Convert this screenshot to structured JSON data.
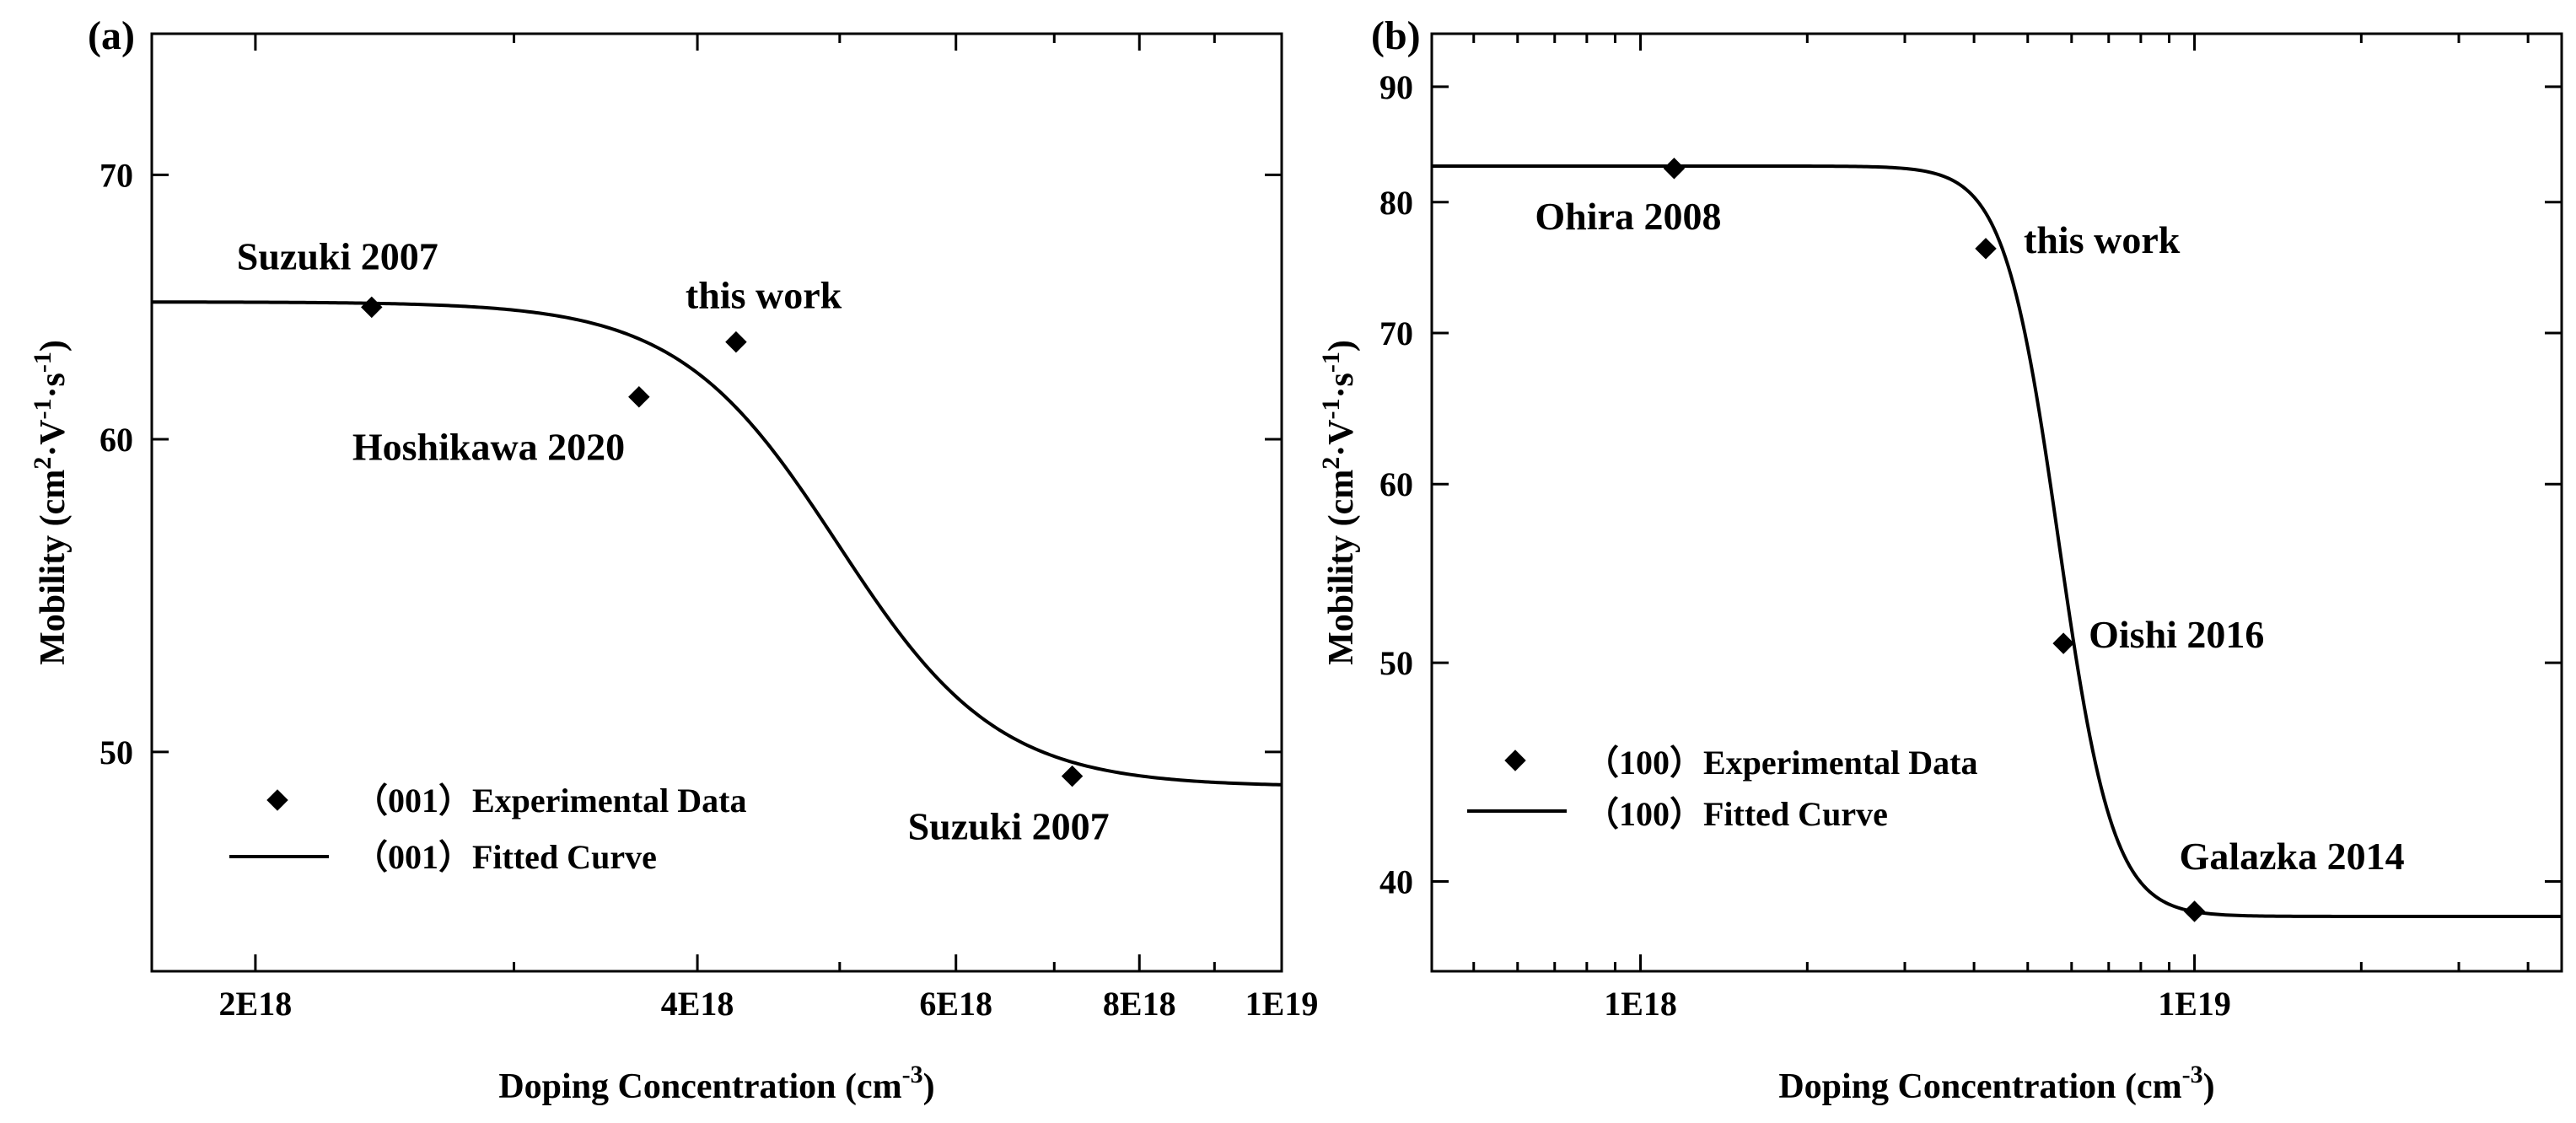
{
  "chart_data": [
    {
      "panel": "(a)",
      "type": "scatter+line",
      "x_scale": "log",
      "y_scale": "log",
      "xlabel": "Doping Concentration (cm",
      "xlabel_sup": "-3",
      "xlabel_end": ")",
      "ylabel_parts": [
        "Mobility (cm",
        "2",
        "·V",
        "-1",
        "·s",
        "-1",
        ")"
      ],
      "xlim": [
        1.7e+18,
        1e+19
      ],
      "ylim": [
        44.0,
        76.0
      ],
      "x_ticks": [
        {
          "value": 2e+18,
          "label": "2E18"
        },
        {
          "value": 4e+18,
          "label": "4E18"
        },
        {
          "value": 6e+18,
          "label": "6E18"
        },
        {
          "value": 8e+18,
          "label": "8E18"
        },
        {
          "value": 1e+19,
          "label": "1E19"
        }
      ],
      "x_minor_ticks": [
        3e+18,
        5e+18,
        7e+18,
        9e+18
      ],
      "y_ticks": [
        {
          "value": 50,
          "label": "50"
        },
        {
          "value": 60,
          "label": "60"
        },
        {
          "value": 70,
          "label": "70"
        }
      ],
      "series": [
        {
          "name": "（001）Experimental Data",
          "kind": "scatter",
          "points": [
            {
              "x": 2.4e+18,
              "y": 64.8,
              "label": "Suzuki  2007"
            },
            {
              "x": 3.65e+18,
              "y": 61.5,
              "label": "Hoshikawa  2020"
            },
            {
              "x": 4.25e+18,
              "y": 63.5,
              "label": "this work"
            },
            {
              "x": 7.2e+18,
              "y": 49.3,
              "label": "Suzuki  2007"
            }
          ]
        },
        {
          "name": "（001）Fitted Curve",
          "kind": "line",
          "model": {
            "top": 65.0,
            "bottom": 49.0,
            "x0": 4.9e+18,
            "p": 8.0
          }
        }
      ],
      "legend_position": "bottom-left"
    },
    {
      "panel": "(b)",
      "type": "scatter+line",
      "x_scale": "log",
      "y_scale": "log",
      "xlabel": "Doping Concentration (cm",
      "xlabel_sup": "-3",
      "xlabel_end": ")",
      "ylabel_parts": [
        "Mobility (cm",
        "2",
        "·V",
        "-1",
        "·s",
        "-1",
        ")"
      ],
      "xlim": [
        4.2e+17,
        4.6e+19
      ],
      "ylim": [
        36.5,
        95.0
      ],
      "x_ticks": [
        {
          "value": 1e+18,
          "label": "1E18"
        },
        {
          "value": 1e+19,
          "label": "1E19"
        }
      ],
      "x_minor_ticks": [
        5e+17,
        6e+17,
        7e+17,
        8e+17,
        9e+17,
        2e+18,
        3e+18,
        4e+18,
        5e+18,
        6e+18,
        7e+18,
        8e+18,
        9e+18,
        2e+19,
        3e+19,
        4e+19
      ],
      "y_ticks": [
        {
          "value": 40,
          "label": "40"
        },
        {
          "value": 50,
          "label": "50"
        },
        {
          "value": 60,
          "label": "60"
        },
        {
          "value": 70,
          "label": "70"
        },
        {
          "value": 80,
          "label": "80"
        },
        {
          "value": 90,
          "label": "90"
        }
      ],
      "series": [
        {
          "name": "（100）Experimental Data",
          "kind": "scatter",
          "points": [
            {
              "x": 1.15e+18,
              "y": 82.8,
              "label": "Ohira  2008"
            },
            {
              "x": 4.2e+18,
              "y": 76.3,
              "label": "this work"
            },
            {
              "x": 5.8e+18,
              "y": 51.0,
              "label": "Oishi  2016"
            },
            {
              "x": 1e+19,
              "y": 38.8,
              "label": "Galazka  2014"
            }
          ]
        },
        {
          "name": "（100）Fitted Curve",
          "kind": "line",
          "model": {
            "top": 83.0,
            "bottom": 38.6,
            "x0": 5.45e+18,
            "p": 9.0
          }
        }
      ],
      "legend_position": "bottom-left"
    }
  ]
}
